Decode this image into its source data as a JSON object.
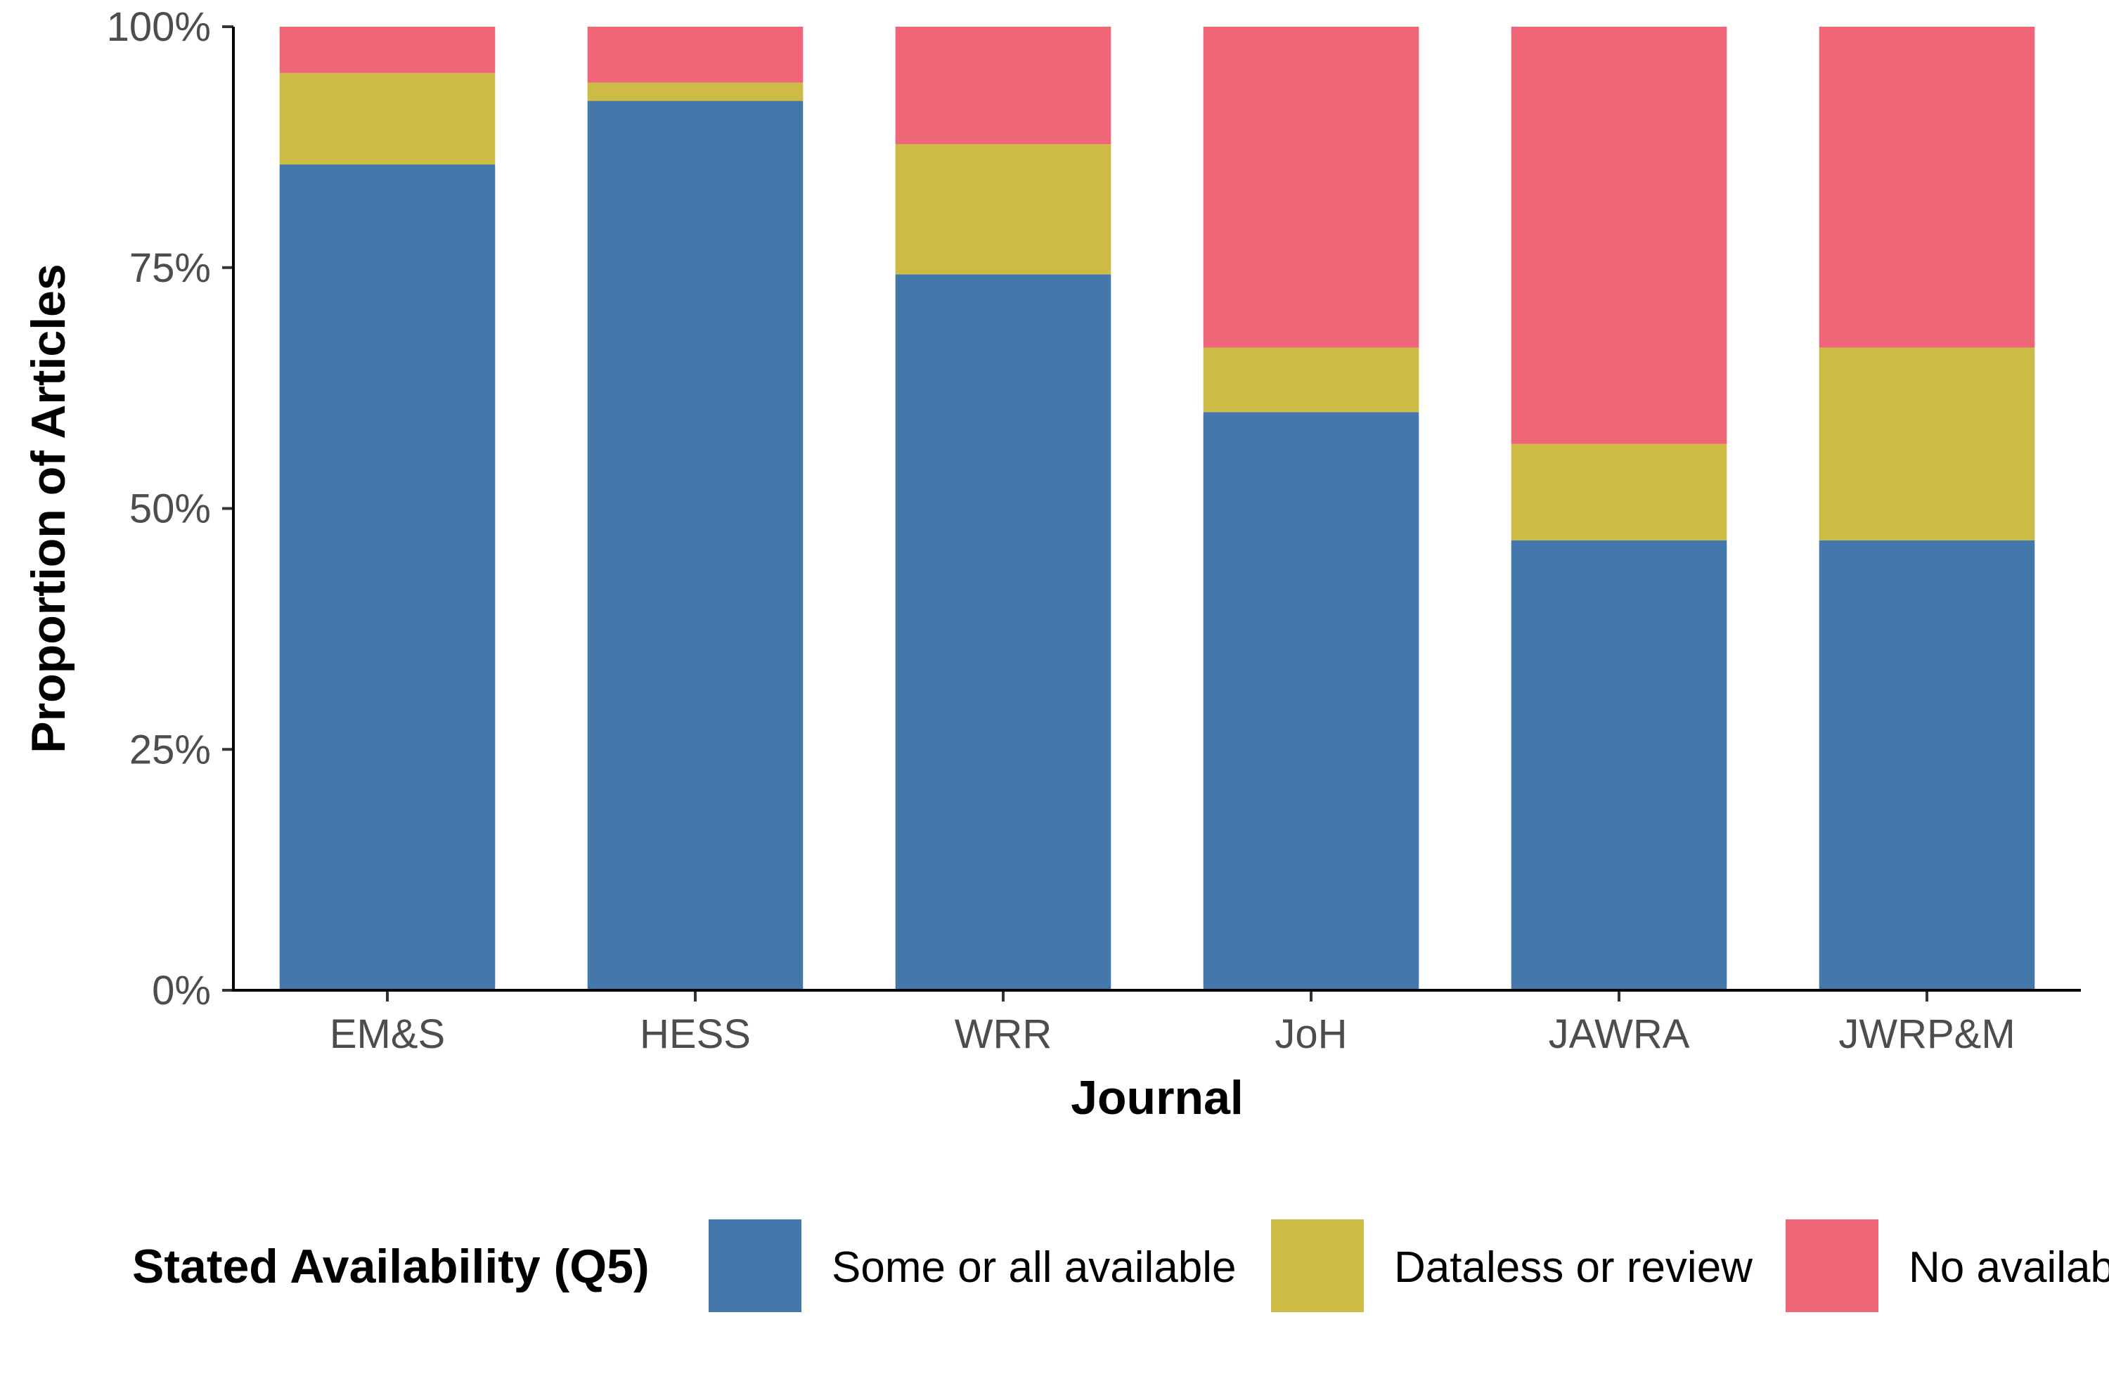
{
  "chart_data": {
    "type": "bar",
    "stacked": true,
    "xlabel": "Journal",
    "ylabel": "Proportion of Articles",
    "ylim": [
      0,
      1
    ],
    "yticks": [
      0,
      0.25,
      0.5,
      0.75,
      1
    ],
    "ytick_labels": [
      "0%",
      "25%",
      "50%",
      "75%",
      "100%"
    ],
    "categories": [
      "EM&S",
      "HESS",
      "WRR",
      "JoH",
      "JAWRA",
      "JWRP&M"
    ],
    "series": [
      {
        "name": "Some or all available",
        "color": "#4477AA",
        "values": [
          0.857,
          0.923,
          0.743,
          0.6,
          0.467,
          0.467
        ]
      },
      {
        "name": "Dataless or review",
        "color": "#CCBB44",
        "values": [
          0.095,
          0.019,
          0.135,
          0.067,
          0.1,
          0.2
        ]
      },
      {
        "name": "No availability",
        "color": "#EE6677",
        "values": [
          0.048,
          0.058,
          0.122,
          0.333,
          0.433,
          0.333
        ]
      }
    ],
    "legend": {
      "title": "Stated Availability (Q5)",
      "position": "bottom",
      "labels": [
        "Some or all available",
        "Dataless or review",
        "No availab"
      ]
    },
    "grid": false
  }
}
